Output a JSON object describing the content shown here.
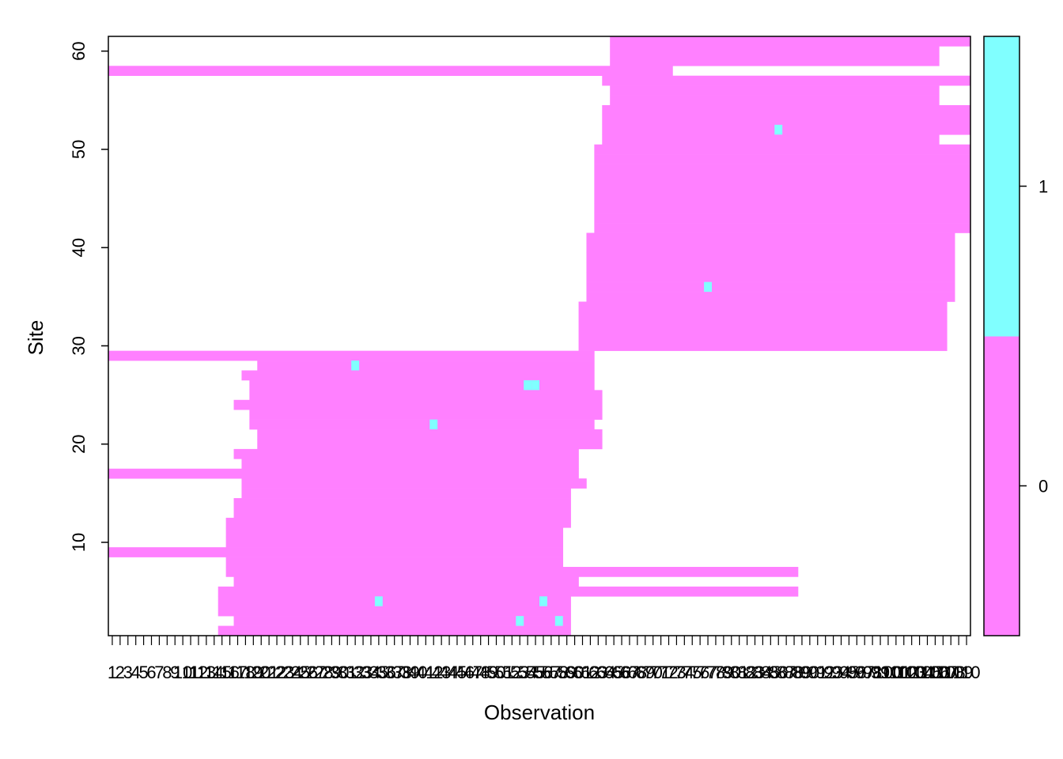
{
  "chart_data": {
    "type": "heatmap",
    "title": "",
    "xlabel": "Observation",
    "ylabel": "Site",
    "x_range": [
      1,
      110
    ],
    "y_range": [
      1,
      61
    ],
    "y_ticks": [
      10,
      20,
      30,
      40,
      50,
      60
    ],
    "colorkey": {
      "ticks": [
        0,
        1
      ],
      "levels": [
        {
          "label": "0",
          "color": "#FF80FF"
        },
        {
          "label": "1",
          "color": "#80FFFF"
        }
      ]
    },
    "colors": {
      "zero": "#FF80FF",
      "one": "#80FFFF"
    },
    "rows": [
      {
        "site": 1,
        "from": 15,
        "to": 59
      },
      {
        "site": 2,
        "from": 17,
        "to": 59
      },
      {
        "site": 3,
        "from": 15,
        "to": 59
      },
      {
        "site": 4,
        "from": 15,
        "to": 59
      },
      {
        "site": 5,
        "from": 15,
        "to": 88
      },
      {
        "site": 6,
        "from": 17,
        "to": 60
      },
      {
        "site": 7,
        "from": 16,
        "to": 88
      },
      {
        "site": 8,
        "from": 16,
        "to": 58
      },
      {
        "site": 9,
        "from": 1,
        "to": 58
      },
      {
        "site": 10,
        "from": 16,
        "to": 58
      },
      {
        "site": 11,
        "from": 16,
        "to": 58
      },
      {
        "site": 12,
        "from": 16,
        "to": 59
      },
      {
        "site": 13,
        "from": 17,
        "to": 59
      },
      {
        "site": 14,
        "from": 17,
        "to": 59
      },
      {
        "site": 15,
        "from": 18,
        "to": 59
      },
      {
        "site": 16,
        "from": 18,
        "to": 61
      },
      {
        "site": 17,
        "from": 1,
        "to": 60
      },
      {
        "site": 18,
        "from": 18,
        "to": 60
      },
      {
        "site": 19,
        "from": 17,
        "to": 60
      },
      {
        "site": 20,
        "from": 20,
        "to": 63
      },
      {
        "site": 21,
        "from": 20,
        "to": 63
      },
      {
        "site": 22,
        "from": 19,
        "to": 62
      },
      {
        "site": 23,
        "from": 19,
        "to": 63
      },
      {
        "site": 24,
        "from": 17,
        "to": 63
      },
      {
        "site": 25,
        "from": 19,
        "to": 63
      },
      {
        "site": 26,
        "from": 19,
        "to": 62
      },
      {
        "site": 27,
        "from": 18,
        "to": 62
      },
      {
        "site": 28,
        "from": 20,
        "to": 62
      },
      {
        "site": 29,
        "from": 1,
        "to": 62
      },
      {
        "site": 30,
        "from": 61,
        "to": 107
      },
      {
        "site": 31,
        "from": 61,
        "to": 107
      },
      {
        "site": 32,
        "from": 61,
        "to": 107
      },
      {
        "site": 33,
        "from": 61,
        "to": 107
      },
      {
        "site": 34,
        "from": 61,
        "to": 107
      },
      {
        "site": 35,
        "from": 62,
        "to": 108
      },
      {
        "site": 36,
        "from": 62,
        "to": 108
      },
      {
        "site": 37,
        "from": 62,
        "to": 108
      },
      {
        "site": 38,
        "from": 62,
        "to": 108
      },
      {
        "site": 39,
        "from": 62,
        "to": 108
      },
      {
        "site": 40,
        "from": 62,
        "to": 108
      },
      {
        "site": 41,
        "from": 62,
        "to": 108
      },
      {
        "site": 42,
        "from": 63,
        "to": 110
      },
      {
        "site": 43,
        "from": 63,
        "to": 110
      },
      {
        "site": 44,
        "from": 63,
        "to": 110
      },
      {
        "site": 45,
        "from": 63,
        "to": 110
      },
      {
        "site": 46,
        "from": 63,
        "to": 110
      },
      {
        "site": 47,
        "from": 63,
        "to": 110
      },
      {
        "site": 48,
        "from": 63,
        "to": 110
      },
      {
        "site": 49,
        "from": 63,
        "to": 110
      },
      {
        "site": 50,
        "from": 63,
        "to": 110
      },
      {
        "site": 51,
        "from": 64,
        "to": 106
      },
      {
        "site": 52,
        "from": 64,
        "to": 110
      },
      {
        "site": 53,
        "from": 64,
        "to": 110
      },
      {
        "site": 54,
        "from": 64,
        "to": 110
      },
      {
        "site": 55,
        "from": 65,
        "to": 106
      },
      {
        "site": 56,
        "from": 65,
        "to": 106
      },
      {
        "site": 57,
        "from": 64,
        "to": 110
      },
      {
        "site": 58,
        "from": 1,
        "to": 72
      },
      {
        "site": 59,
        "from": 65,
        "to": 106
      },
      {
        "site": 60,
        "from": 65,
        "to": 106
      },
      {
        "site": 61,
        "from": 65,
        "to": 110
      }
    ],
    "ones": [
      {
        "x": 32,
        "y": 28
      },
      {
        "x": 54,
        "y": 26
      },
      {
        "x": 55,
        "y": 26
      },
      {
        "x": 42,
        "y": 22
      },
      {
        "x": 35,
        "y": 4
      },
      {
        "x": 56,
        "y": 4
      },
      {
        "x": 53,
        "y": 2
      },
      {
        "x": 58,
        "y": 2
      },
      {
        "x": 77,
        "y": 36
      },
      {
        "x": 86,
        "y": 52
      }
    ],
    "x_tick_labels": [
      "1",
      "2",
      "3",
      "4",
      "5",
      "6",
      "7",
      "8",
      "9",
      "10",
      "11",
      "12",
      "13",
      "14",
      "15",
      "16",
      "17",
      "18",
      "19",
      "20",
      "21",
      "22",
      "23",
      "24",
      "25",
      "26",
      "27",
      "28",
      "29",
      "30",
      "31",
      "32",
      "33",
      "34",
      "35",
      "36",
      "37",
      "38",
      "39",
      "40",
      "41",
      "42",
      "43",
      "44",
      "45",
      "46",
      "47",
      "48",
      "49",
      "50",
      "51",
      "52",
      "53",
      "54",
      "55",
      "56",
      "57",
      "58",
      "59",
      "60",
      "61",
      "62",
      "63",
      "64",
      "65",
      "66",
      "67",
      "68",
      "69",
      "70",
      "71",
      "72",
      "73",
      "74",
      "75",
      "76",
      "77",
      "78",
      "79",
      "80",
      "81",
      "82",
      "83",
      "84",
      "85",
      "86",
      "87",
      "88",
      "89",
      "90",
      "91",
      "92",
      "93",
      "94",
      "95",
      "96",
      "97",
      "98",
      "99",
      "100",
      "101",
      "102",
      "103",
      "104",
      "105",
      "106",
      "107",
      "108",
      "109",
      "110"
    ]
  }
}
